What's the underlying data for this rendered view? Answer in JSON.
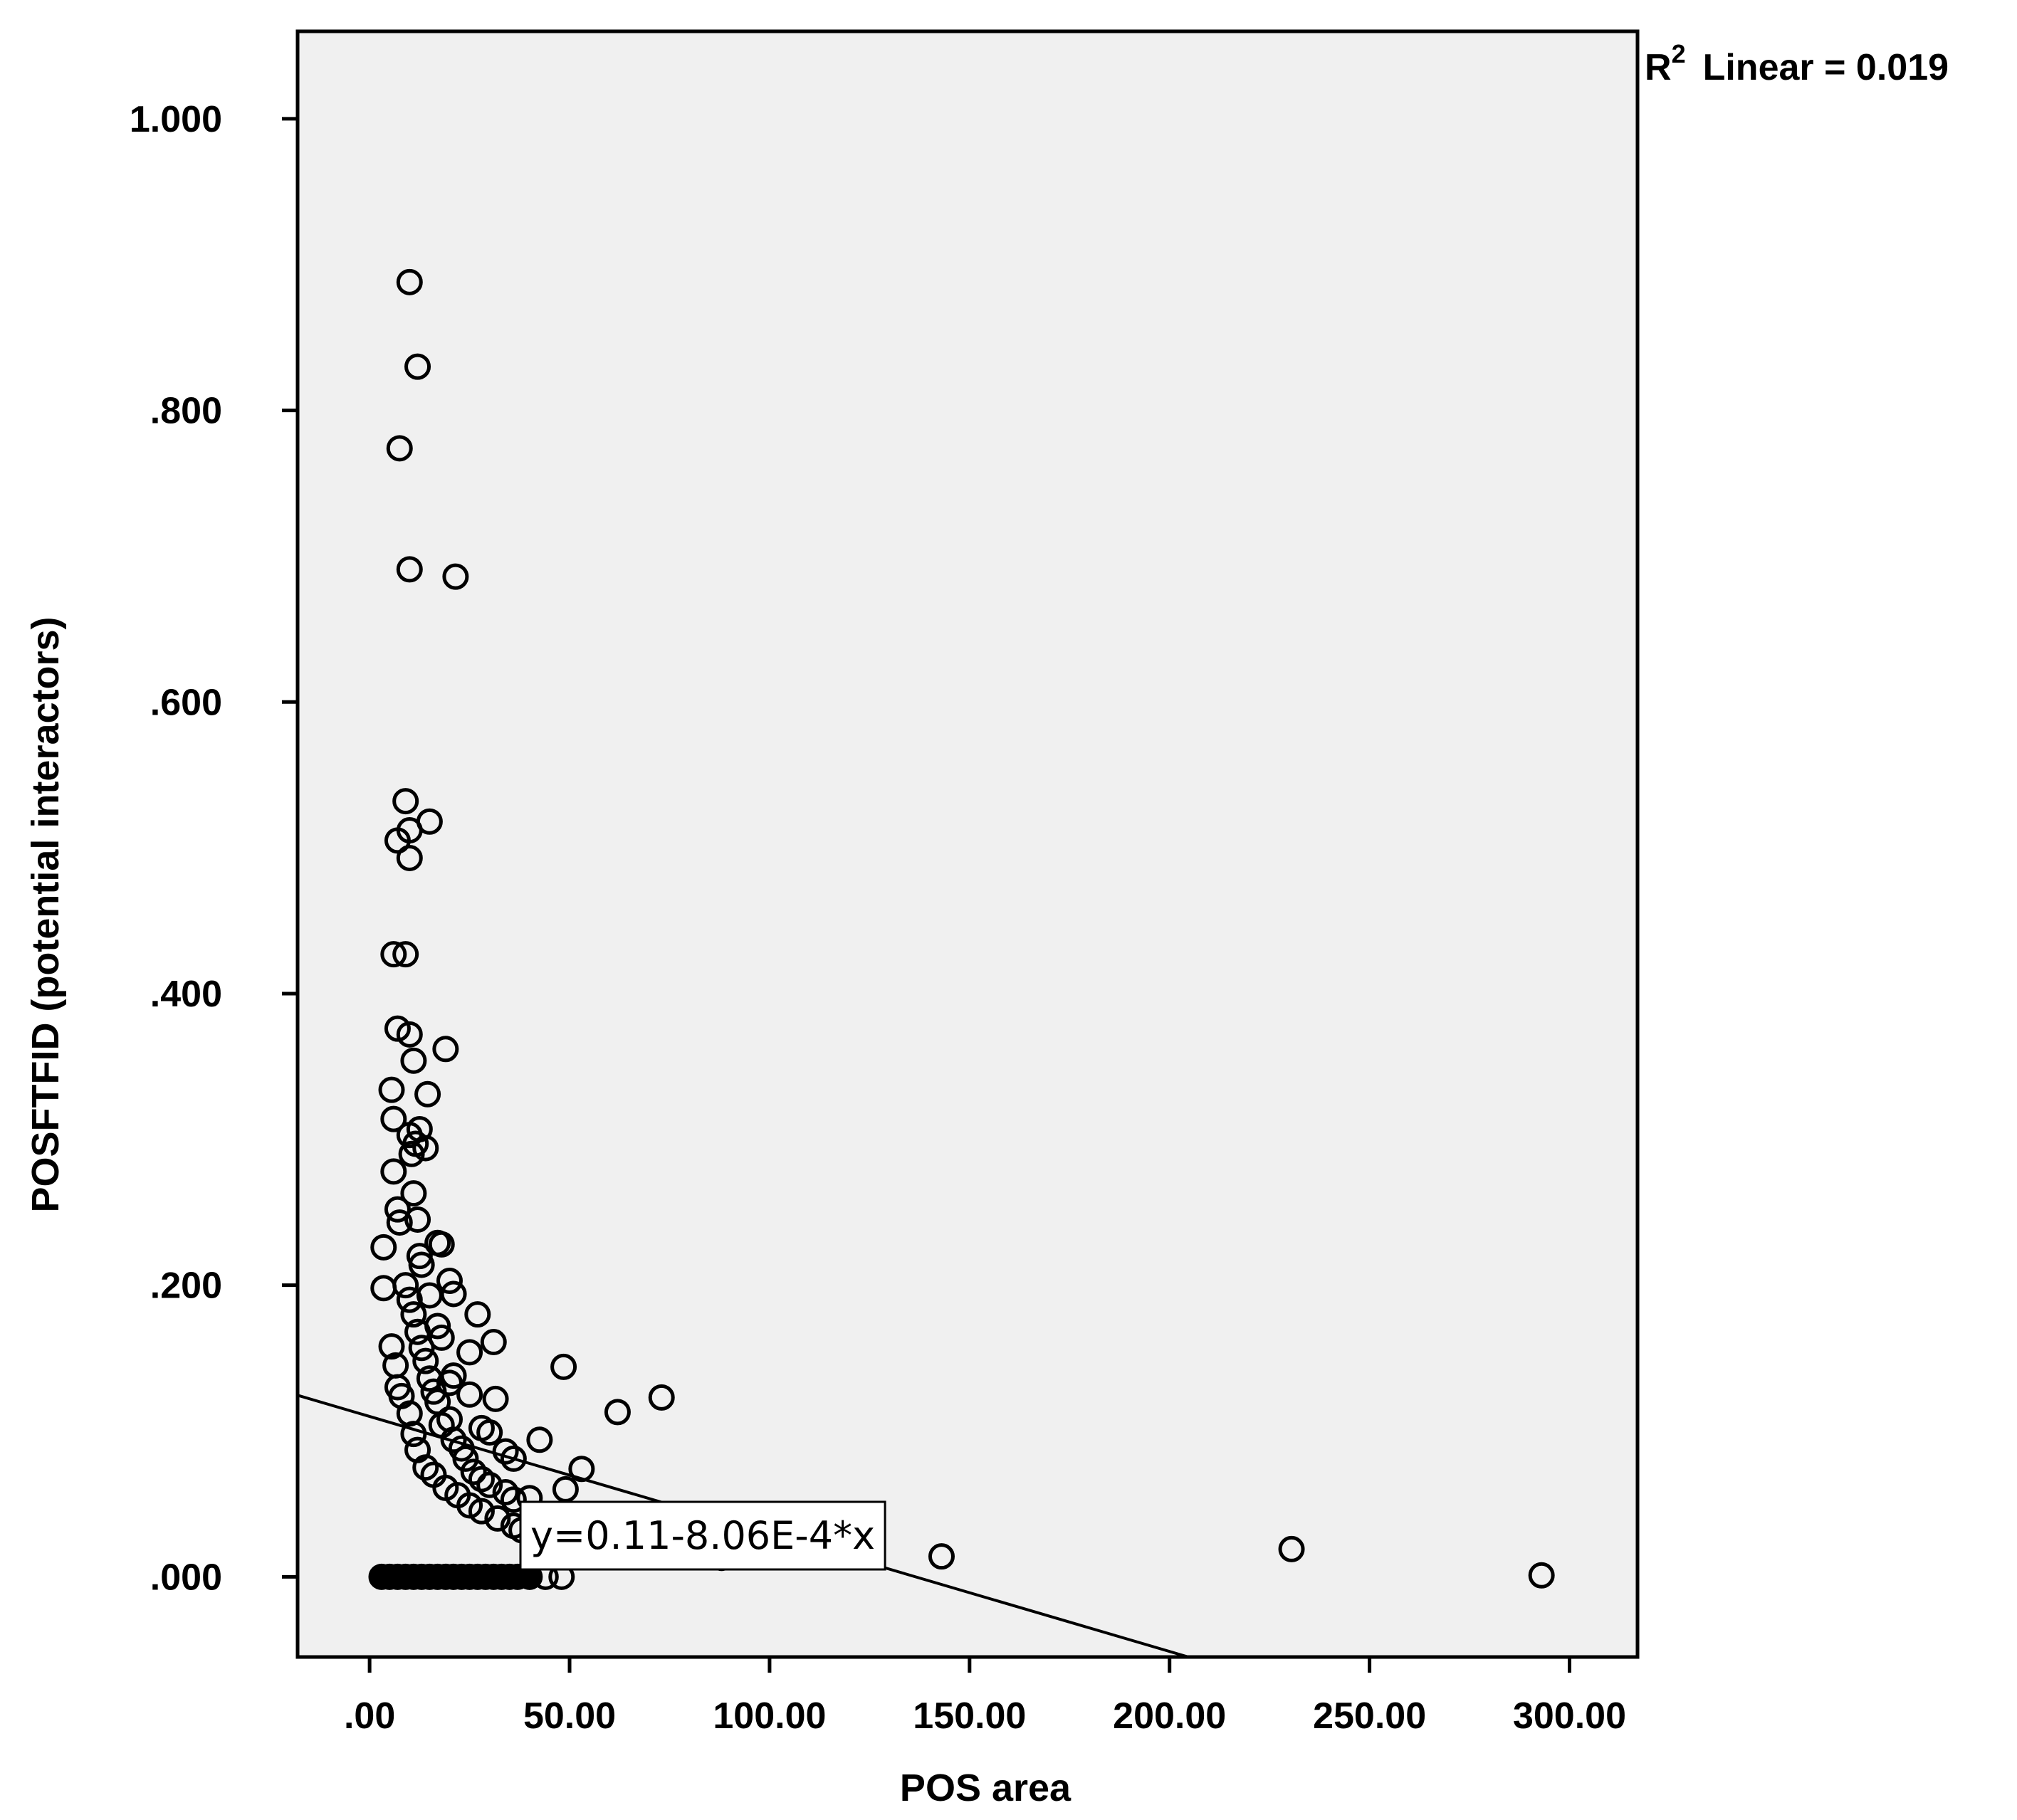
{
  "chart_data": {
    "type": "scatter",
    "xlabel": "POS area",
    "ylabel": "POSFTFID (potential interactors)",
    "xlim": [
      -18,
      317
    ],
    "ylim": [
      -0.055,
      1.06
    ],
    "x_ticks": [
      0,
      50,
      100,
      150,
      200,
      250,
      300
    ],
    "x_tick_labels": [
      ".00",
      "50.00",
      "100.00",
      "150.00",
      "200.00",
      "250.00",
      "300.00"
    ],
    "y_ticks": [
      0,
      0.2,
      0.4,
      0.6,
      0.8,
      1.0
    ],
    "y_tick_labels": [
      ".000",
      ".200",
      ".400",
      ".600",
      ".800",
      "1.000"
    ],
    "grid": false,
    "r2_label": {
      "prefix": "R",
      "superscript": "2",
      "text": "Linear = 0.019"
    },
    "fit_line": {
      "intercept": 0.11,
      "slope": -0.000806,
      "equation_label": "y=0.11-8.06E-4*x"
    },
    "series": [
      {
        "marker": "open-circle",
        "points": [
          [
            10,
            0.888
          ],
          [
            12,
            0.83
          ],
          [
            7.5,
            0.774
          ],
          [
            10,
            0.691
          ],
          [
            21.5,
            0.686
          ],
          [
            9,
            0.532
          ],
          [
            15,
            0.518
          ],
          [
            10,
            0.512
          ],
          [
            7,
            0.505
          ],
          [
            10,
            0.493
          ],
          [
            6,
            0.427
          ],
          [
            9,
            0.427
          ],
          [
            7,
            0.376
          ],
          [
            10,
            0.372
          ],
          [
            19,
            0.362
          ],
          [
            11,
            0.354
          ],
          [
            5.5,
            0.334
          ],
          [
            14.5,
            0.331
          ],
          [
            6,
            0.314
          ],
          [
            12.5,
            0.307
          ],
          [
            10,
            0.303
          ],
          [
            11.5,
            0.297
          ],
          [
            14,
            0.294
          ],
          [
            10.5,
            0.29
          ],
          [
            6,
            0.278
          ],
          [
            11,
            0.263
          ],
          [
            7,
            0.252
          ],
          [
            12,
            0.245
          ],
          [
            7.5,
            0.243
          ],
          [
            3.5,
            0.226
          ],
          [
            17,
            0.229
          ],
          [
            18,
            0.228
          ],
          [
            12.5,
            0.22
          ],
          [
            13,
            0.214
          ],
          [
            3.5,
            0.198
          ],
          [
            9,
            0.2
          ],
          [
            20,
            0.203
          ],
          [
            21,
            0.194
          ],
          [
            15,
            0.193
          ],
          [
            10,
            0.19
          ],
          [
            11,
            0.18
          ],
          [
            27,
            0.18
          ],
          [
            17,
            0.172
          ],
          [
            12,
            0.168
          ],
          [
            18,
            0.164
          ],
          [
            31,
            0.161
          ],
          [
            5.5,
            0.158
          ],
          [
            13,
            0.157
          ],
          [
            25,
            0.154
          ],
          [
            14,
            0.148
          ],
          [
            6.5,
            0.145
          ],
          [
            48.5,
            0.144
          ],
          [
            21,
            0.138
          ],
          [
            15,
            0.136
          ],
          [
            20,
            0.133
          ],
          [
            7,
            0.13
          ],
          [
            16,
            0.127
          ],
          [
            25,
            0.125
          ],
          [
            8,
            0.124
          ],
          [
            17,
            0.12
          ],
          [
            31.5,
            0.122
          ],
          [
            73,
            0.123
          ],
          [
            62,
            0.113
          ],
          [
            10,
            0.112
          ],
          [
            20,
            0.108
          ],
          [
            18,
            0.104
          ],
          [
            28,
            0.102
          ],
          [
            30,
            0.099
          ],
          [
            11,
            0.098
          ],
          [
            42.5,
            0.094
          ],
          [
            21,
            0.094
          ],
          [
            23,
            0.088
          ],
          [
            34,
            0.086
          ],
          [
            12,
            0.087
          ],
          [
            36,
            0.081
          ],
          [
            24,
            0.081
          ],
          [
            14,
            0.075
          ],
          [
            53,
            0.074
          ],
          [
            26,
            0.072
          ],
          [
            16,
            0.07
          ],
          [
            28,
            0.067
          ],
          [
            19,
            0.061
          ],
          [
            49,
            0.06
          ],
          [
            30,
            0.063
          ],
          [
            34,
            0.058
          ],
          [
            22,
            0.056
          ],
          [
            40,
            0.054
          ],
          [
            36,
            0.053
          ],
          [
            25,
            0.049
          ],
          [
            28,
            0.045
          ],
          [
            32,
            0.04
          ],
          [
            36,
            0.035
          ],
          [
            38,
            0.032
          ],
          [
            43,
            0.025
          ],
          [
            48,
            0.022
          ],
          [
            88,
            0.013
          ],
          [
            143,
            0.014
          ],
          [
            230.5,
            0.019
          ],
          [
            293,
            0.001
          ],
          [
            3,
            0
          ],
          [
            5,
            0
          ],
          [
            7,
            0
          ],
          [
            9,
            0
          ],
          [
            11,
            0
          ],
          [
            13,
            0
          ],
          [
            15,
            0
          ],
          [
            17,
            0
          ],
          [
            19,
            0
          ],
          [
            21,
            0
          ],
          [
            23,
            0
          ],
          [
            25,
            0
          ],
          [
            27,
            0
          ],
          [
            29,
            0
          ],
          [
            31,
            0
          ],
          [
            33,
            0
          ],
          [
            35,
            0
          ],
          [
            37,
            0
          ],
          [
            40,
            0
          ],
          [
            44,
            0
          ],
          [
            48,
            0
          ]
        ]
      }
    ]
  }
}
